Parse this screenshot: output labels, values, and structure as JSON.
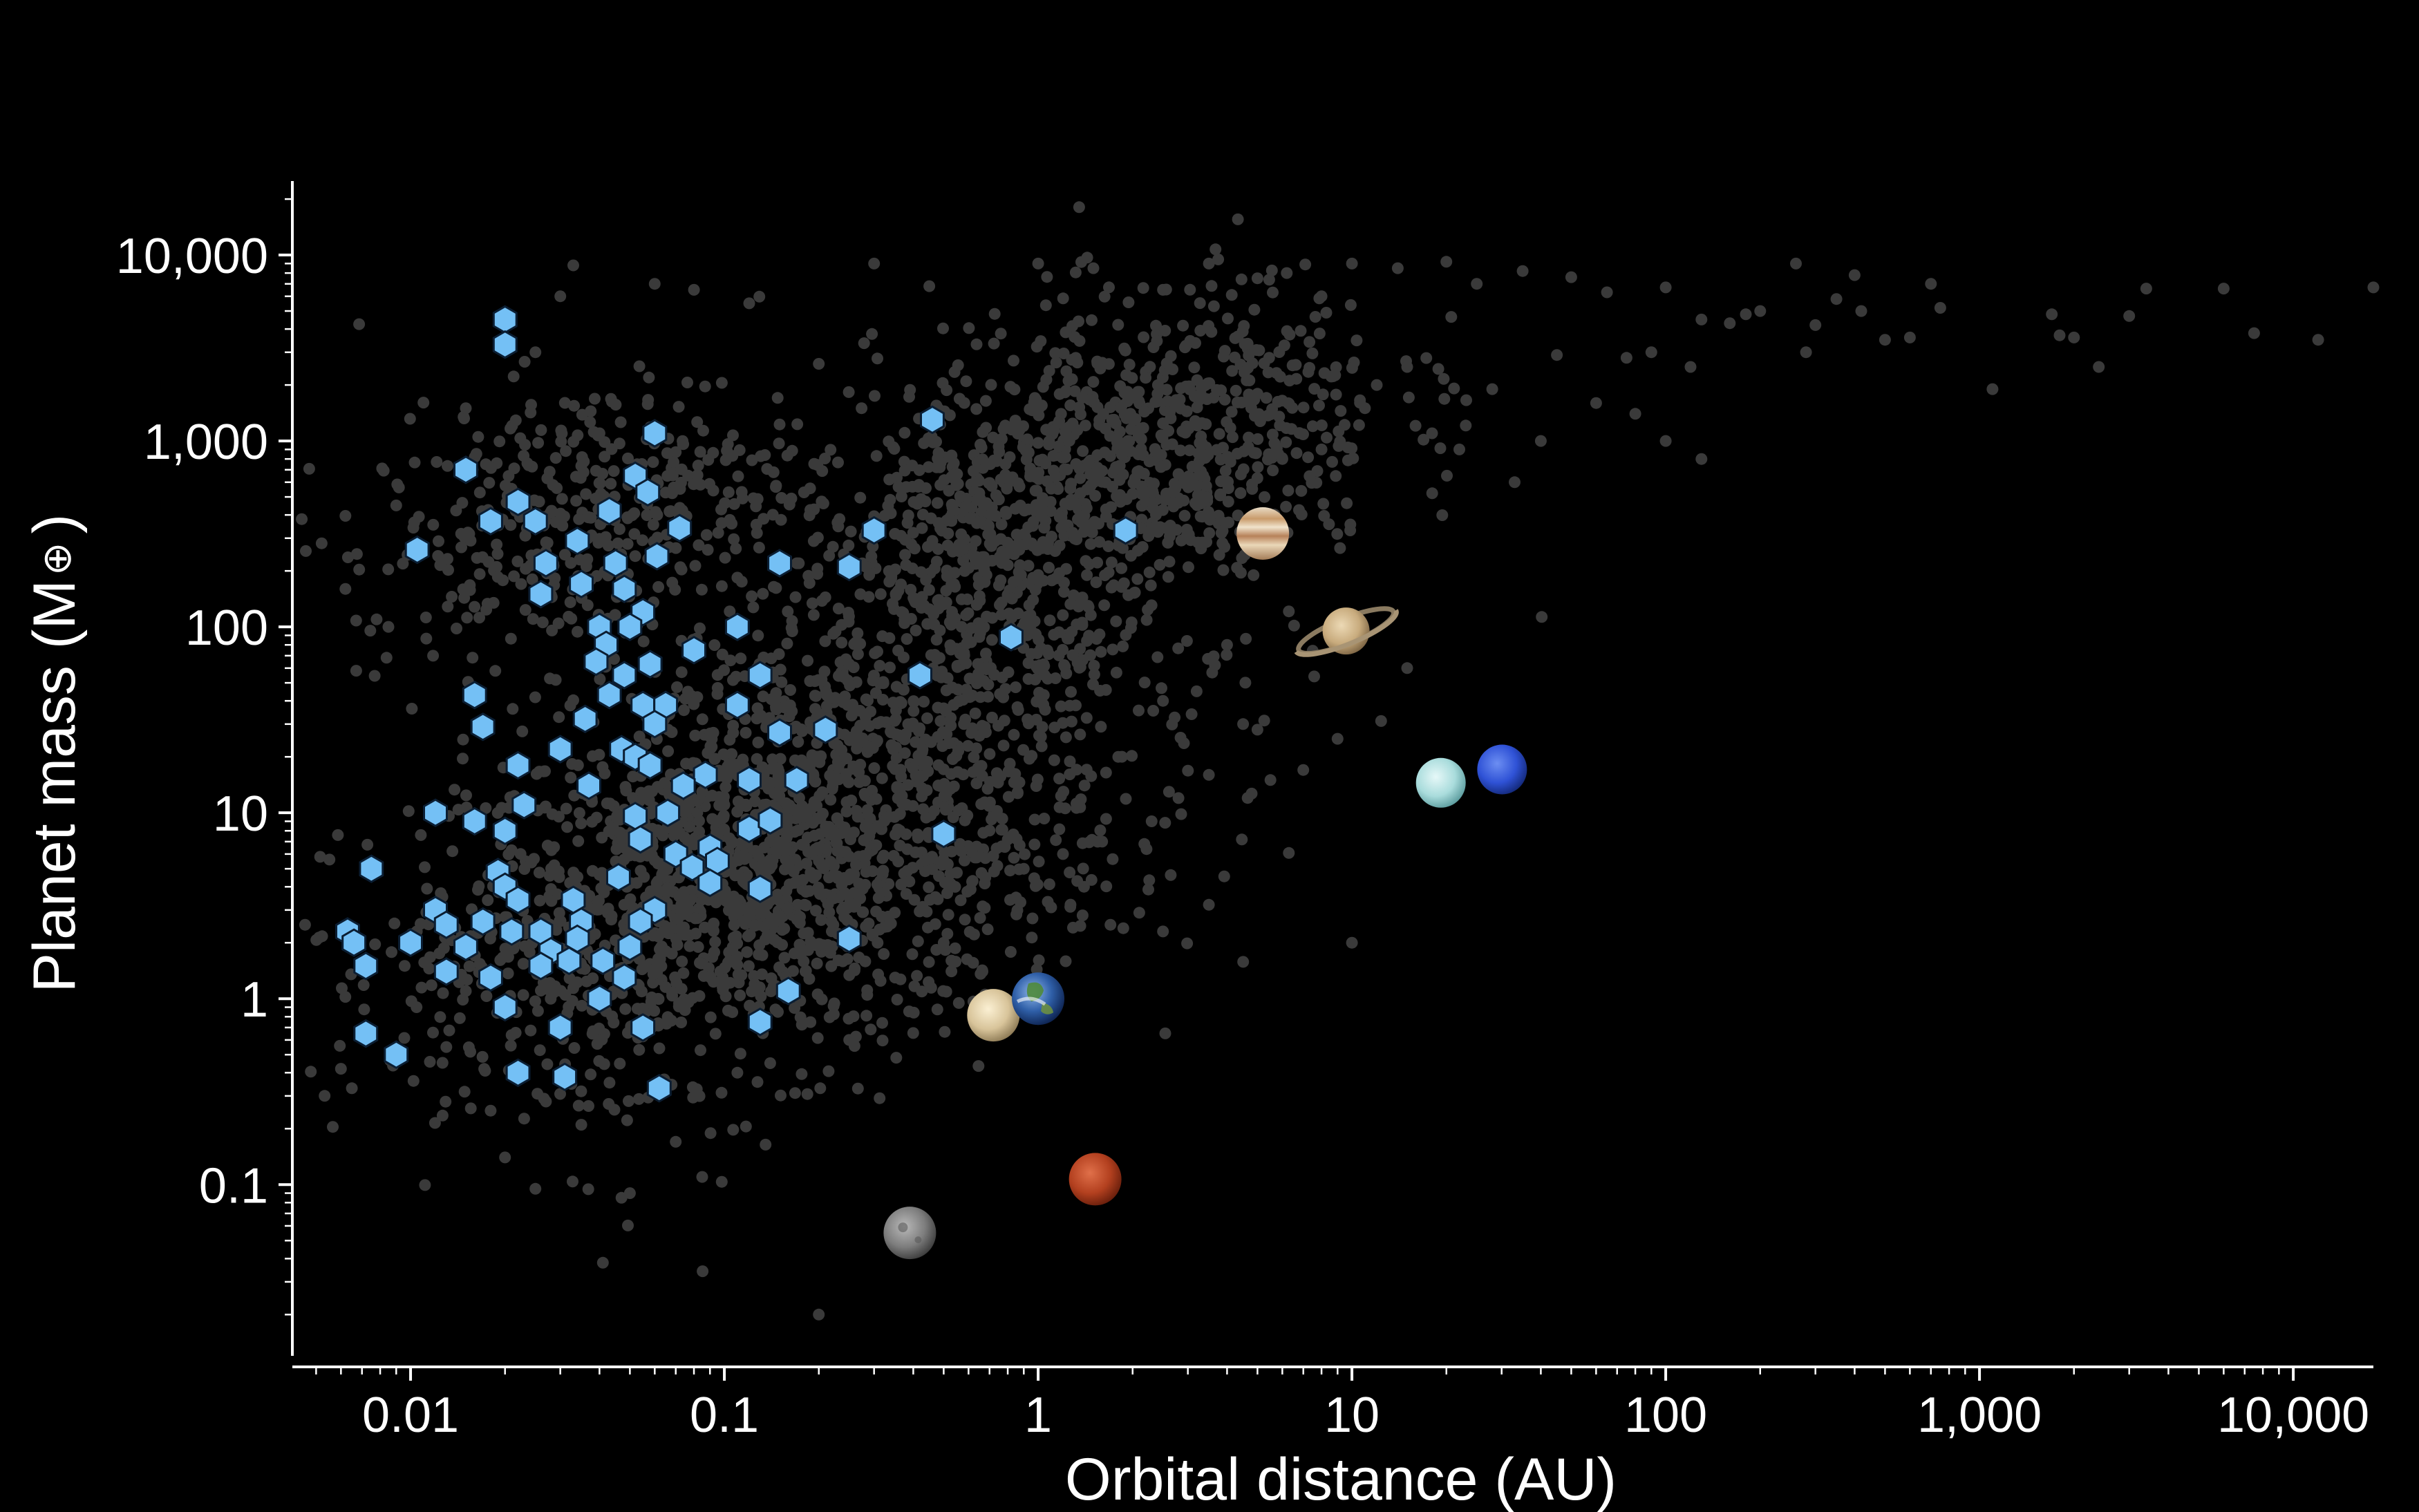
{
  "chart_data": {
    "type": "scatter",
    "title": "",
    "xlabel": "Orbital distance (AU)",
    "ylabel_main": "Planet mass (M",
    "ylabel_symbol": "⊕",
    "ylabel_close": ")",
    "x_scale": "log",
    "y_scale": "log",
    "xlim": [
      0.0042,
      18000
    ],
    "ylim": [
      0.012,
      25000
    ],
    "x_ticks": [
      {
        "value": 0.01,
        "label": "0.01"
      },
      {
        "value": 0.1,
        "label": "0.1"
      },
      {
        "value": 1,
        "label": "1"
      },
      {
        "value": 10,
        "label": "10"
      },
      {
        "value": 100,
        "label": "100"
      },
      {
        "value": 1000,
        "label": "1,000"
      },
      {
        "value": 10000,
        "label": "10,000"
      }
    ],
    "y_ticks": [
      {
        "value": 0.1,
        "label": "0.1"
      },
      {
        "value": 1,
        "label": "1"
      },
      {
        "value": 10,
        "label": "10"
      },
      {
        "value": 100,
        "label": "100"
      },
      {
        "value": 1000,
        "label": "1,000"
      },
      {
        "value": 10000,
        "label": "10,000"
      }
    ],
    "grid": false,
    "legend": "none",
    "colors": {
      "background": "#000000",
      "background_points": "#3a3a3a",
      "highlight": "#74c0f5",
      "highlight_edge": "#0b1e33",
      "axis": "#ffffff"
    },
    "series": [
      {
        "marker": "circle",
        "color": "#3a3a3a",
        "points": [
          [
            0.0045,
            380
          ],
          [
            0.0062,
            160
          ],
          [
            0.009,
            450
          ],
          [
            0.0085,
            100
          ],
          [
            0.006,
            0.42
          ],
          [
            0.0065,
            0.33
          ],
          [
            0.013,
            0.55
          ],
          [
            0.015,
            1.1
          ],
          [
            0.018,
            0.25
          ],
          [
            0.02,
            0.14
          ],
          [
            0.025,
            0.095
          ],
          [
            0.027,
            0.28
          ],
          [
            0.035,
            0.21
          ],
          [
            0.041,
            0.038
          ],
          [
            0.047,
            0.085
          ],
          [
            0.05,
            0.09
          ],
          [
            0.07,
            0.17
          ],
          [
            0.085,
            0.11
          ],
          [
            0.11,
            0.4
          ],
          [
            0.14,
            0.45
          ],
          [
            0.2,
            0.02
          ],
          [
            0.25,
            0.6
          ],
          [
            0.35,
            1.3
          ],
          [
            0.5,
            2.0
          ],
          [
            0.45,
            6800
          ],
          [
            0.3,
            9000
          ],
          [
            0.2,
            2600
          ],
          [
            0.12,
            5500
          ],
          [
            0.08,
            6500
          ],
          [
            0.06,
            7000
          ],
          [
            0.033,
            8800
          ],
          [
            0.03,
            6000
          ],
          [
            0.025,
            3000
          ],
          [
            0.04,
            1100
          ],
          [
            0.015,
            1500
          ],
          [
            1.0,
            9000
          ],
          [
            1.5,
            8500
          ],
          [
            2.5,
            6500
          ],
          [
            3.5,
            9000
          ],
          [
            5.0,
            7500
          ],
          [
            6.2,
            8000
          ],
          [
            8.0,
            6000
          ],
          [
            10,
            9000
          ],
          [
            14,
            8500
          ],
          [
            20,
            9200
          ],
          [
            25,
            7000
          ],
          [
            35,
            8200
          ],
          [
            50,
            7600
          ],
          [
            65,
            6300
          ],
          [
            100,
            6700
          ],
          [
            130,
            4500
          ],
          [
            180,
            4800
          ],
          [
            260,
            9000
          ],
          [
            300,
            4200
          ],
          [
            400,
            7800
          ],
          [
            500,
            3500
          ],
          [
            700,
            7000
          ],
          [
            750,
            5200
          ],
          [
            1100,
            1900
          ],
          [
            1700,
            4800
          ],
          [
            2400,
            2500
          ],
          [
            3400,
            6600
          ],
          [
            6000,
            6600
          ],
          [
            7500,
            3800
          ],
          [
            12000,
            3500
          ],
          [
            18000,
            6700
          ],
          [
            3000,
            4700
          ],
          [
            2000,
            3600
          ],
          [
            1800,
            3700
          ],
          [
            600,
            3600
          ],
          [
            420,
            5000
          ],
          [
            350,
            5800
          ],
          [
            280,
            3000
          ],
          [
            200,
            5000
          ],
          [
            160,
            4300
          ],
          [
            120,
            2500
          ],
          [
            90,
            3000
          ],
          [
            75,
            2800
          ],
          [
            60,
            1600
          ],
          [
            45,
            2900
          ],
          [
            40,
            1000
          ],
          [
            33,
            600
          ],
          [
            28,
            1900
          ],
          [
            22,
            900
          ],
          [
            18,
            1100
          ],
          [
            15,
            2500
          ],
          [
            12,
            2000
          ],
          [
            11,
            1500
          ],
          [
            8,
            900
          ],
          [
            7.5,
            1200
          ],
          [
            6,
            800
          ],
          [
            130,
            800
          ],
          [
            100,
            1000
          ],
          [
            80,
            1400
          ],
          [
            15,
            60
          ],
          [
            9,
            25
          ],
          [
            7,
            17
          ],
          [
            5.5,
            15
          ],
          [
            4.5,
            30
          ],
          [
            3.5,
            3.2
          ],
          [
            2.5,
            2.3
          ],
          [
            2.1,
            2.9
          ],
          [
            1.7,
            2.5
          ],
          [
            1.4,
            4
          ],
          [
            1.1,
            3.1
          ],
          [
            0.95,
            1.0
          ],
          [
            0.85,
            3.5
          ],
          [
            10,
            2.0
          ],
          [
            5,
            28
          ],
          [
            3.5,
            16
          ],
          [
            2.8,
            12
          ],
          [
            2.3,
            9
          ],
          [
            1.6,
            7
          ],
          [
            1.2,
            6
          ],
          [
            0.9,
            5
          ],
          [
            3.2,
            45
          ],
          [
            4,
            80
          ],
          [
            2.5,
            40
          ],
          [
            1.8,
            20
          ]
        ]
      },
      {
        "marker": "hexagon",
        "color": "#74c0f5",
        "points": [
          [
            0.02,
            4500
          ],
          [
            0.02,
            3300
          ],
          [
            0.46,
            1300
          ],
          [
            0.06,
            1100
          ],
          [
            0.015,
            700
          ],
          [
            0.052,
            650
          ],
          [
            0.057,
            530
          ],
          [
            0.018,
            370
          ],
          [
            0.022,
            470
          ],
          [
            0.025,
            370
          ],
          [
            0.034,
            290
          ],
          [
            0.043,
            420
          ],
          [
            0.072,
            340
          ],
          [
            0.3,
            330
          ],
          [
            1.9,
            330
          ],
          [
            0.0105,
            260
          ],
          [
            0.061,
            240
          ],
          [
            0.15,
            220
          ],
          [
            0.25,
            210
          ],
          [
            0.027,
            220
          ],
          [
            0.045,
            220
          ],
          [
            0.026,
            150
          ],
          [
            0.035,
            170
          ],
          [
            0.048,
            160
          ],
          [
            0.055,
            120
          ],
          [
            0.04,
            100
          ],
          [
            0.042,
            80
          ],
          [
            0.039,
            65
          ],
          [
            0.05,
            100
          ],
          [
            0.11,
            100
          ],
          [
            0.82,
            88
          ],
          [
            0.08,
            75
          ],
          [
            0.058,
            63
          ],
          [
            0.048,
            55
          ],
          [
            0.13,
            55
          ],
          [
            0.42,
            55
          ],
          [
            0.016,
            43
          ],
          [
            0.043,
            43
          ],
          [
            0.055,
            38
          ],
          [
            0.065,
            38
          ],
          [
            0.11,
            38
          ],
          [
            0.017,
            29
          ],
          [
            0.036,
            32
          ],
          [
            0.06,
            30
          ],
          [
            0.21,
            28
          ],
          [
            0.15,
            27
          ],
          [
            0.03,
            22
          ],
          [
            0.047,
            22
          ],
          [
            0.052,
            20
          ],
          [
            0.022,
            18
          ],
          [
            0.058,
            18
          ],
          [
            0.087,
            16
          ],
          [
            0.12,
            15
          ],
          [
            0.17,
            15
          ],
          [
            0.037,
            14
          ],
          [
            0.023,
            11
          ],
          [
            0.074,
            14
          ],
          [
            0.066,
            10
          ],
          [
            0.052,
            9.6
          ],
          [
            0.012,
            10
          ],
          [
            0.016,
            9
          ],
          [
            0.02,
            8
          ],
          [
            0.054,
            7.2
          ],
          [
            0.09,
            6.5
          ],
          [
            0.12,
            8.2
          ],
          [
            0.14,
            9.1
          ],
          [
            0.5,
            7.7
          ],
          [
            0.07,
            6
          ],
          [
            0.079,
            5.1
          ],
          [
            0.095,
            5.5
          ],
          [
            0.0075,
            5
          ],
          [
            0.019,
            4.8
          ],
          [
            0.046,
            4.5
          ],
          [
            0.09,
            4.2
          ],
          [
            0.13,
            3.9
          ],
          [
            0.02,
            4
          ],
          [
            0.022,
            3.4
          ],
          [
            0.033,
            3.4
          ],
          [
            0.012,
            3
          ],
          [
            0.06,
            3
          ],
          [
            0.017,
            2.6
          ],
          [
            0.035,
            2.6
          ],
          [
            0.054,
            2.6
          ],
          [
            0.013,
            2.5
          ],
          [
            0.021,
            2.3
          ],
          [
            0.026,
            2.3
          ],
          [
            0.034,
            2.1
          ],
          [
            0.0063,
            2.3
          ],
          [
            0.0066,
            2.0
          ],
          [
            0.01,
            2.0
          ],
          [
            0.015,
            1.9
          ],
          [
            0.028,
            1.8
          ],
          [
            0.041,
            1.6
          ],
          [
            0.05,
            1.9
          ],
          [
            0.0072,
            1.5
          ],
          [
            0.026,
            1.5
          ],
          [
            0.032,
            1.6
          ],
          [
            0.013,
            1.4
          ],
          [
            0.018,
            1.3
          ],
          [
            0.048,
            1.3
          ],
          [
            0.16,
            1.1
          ],
          [
            0.04,
            1.0
          ],
          [
            0.02,
            0.9
          ],
          [
            0.055,
            0.7
          ],
          [
            0.13,
            0.75
          ],
          [
            0.0072,
            0.65
          ],
          [
            0.03,
            0.7
          ],
          [
            0.009,
            0.5
          ],
          [
            0.062,
            0.33
          ],
          [
            0.022,
            0.4
          ],
          [
            0.031,
            0.38
          ],
          [
            0.25,
            2.1
          ]
        ]
      }
    ],
    "solar_system": [
      {
        "name": "Mercury",
        "x": 0.39,
        "y": 0.055
      },
      {
        "name": "Venus",
        "x": 0.72,
        "y": 0.815
      },
      {
        "name": "Earth",
        "x": 1.0,
        "y": 1.0
      },
      {
        "name": "Mars",
        "x": 1.52,
        "y": 0.107
      },
      {
        "name": "Jupiter",
        "x": 5.2,
        "y": 318
      },
      {
        "name": "Saturn",
        "x": 9.58,
        "y": 95
      },
      {
        "name": "Uranus",
        "x": 19.2,
        "y": 14.5
      },
      {
        "name": "Neptune",
        "x": 30.1,
        "y": 17.1
      }
    ],
    "background_clusters": [
      {
        "x": 0.17,
        "y": 5.5,
        "spread": 0.95,
        "n": 1300
      },
      {
        "x": 0.06,
        "y": 3.0,
        "spread": 0.75,
        "n": 500
      },
      {
        "x": 0.035,
        "y": 400,
        "spread": 0.65,
        "n": 420
      },
      {
        "x": 2.0,
        "y": 900,
        "spread": 0.75,
        "n": 750
      },
      {
        "x": 0.4,
        "y": 60,
        "spread": 0.85,
        "n": 450
      },
      {
        "x": 0.9,
        "y": 300,
        "spread": 0.55,
        "n": 250
      }
    ]
  }
}
